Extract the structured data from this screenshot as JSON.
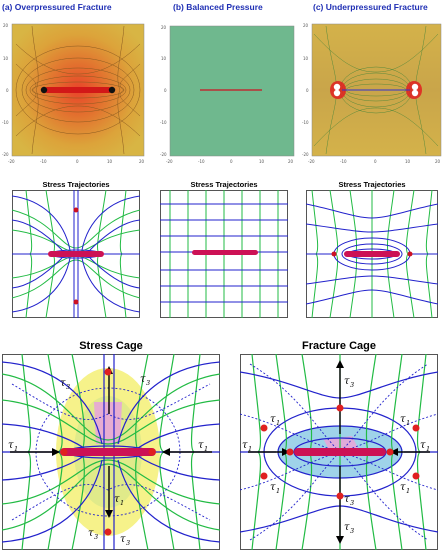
{
  "top_row": {
    "panel_a_title": "(a) Overpressured Fracture",
    "panel_b_title": "(b) Balanced Pressure",
    "panel_c_title": "(c) Underpressured Fracture",
    "ticks_y": [
      "20",
      "10",
      "0",
      "-10",
      "-20"
    ],
    "ticks_x": [
      "-20",
      "-10",
      "0",
      "10",
      "20"
    ]
  },
  "middle_row": {
    "left_title": "Stress Trajectories",
    "center_title": "Stress Trajectories",
    "right_title": "Stress Trajectories"
  },
  "bottom_row": {
    "left_title": "Stress Cage",
    "right_title": "Fracture Cage",
    "stress_symbol": "τ",
    "label_1": "1",
    "label_3": "3"
  },
  "colors": {
    "title_blue": "#1f2fb4",
    "trajectory_blue": "#2222cc",
    "trajectory_green": "#22bb44",
    "fracture_red": "#cc1122",
    "balanced_green": "#6fb88e",
    "contour_orange": "#d9a13a"
  }
}
